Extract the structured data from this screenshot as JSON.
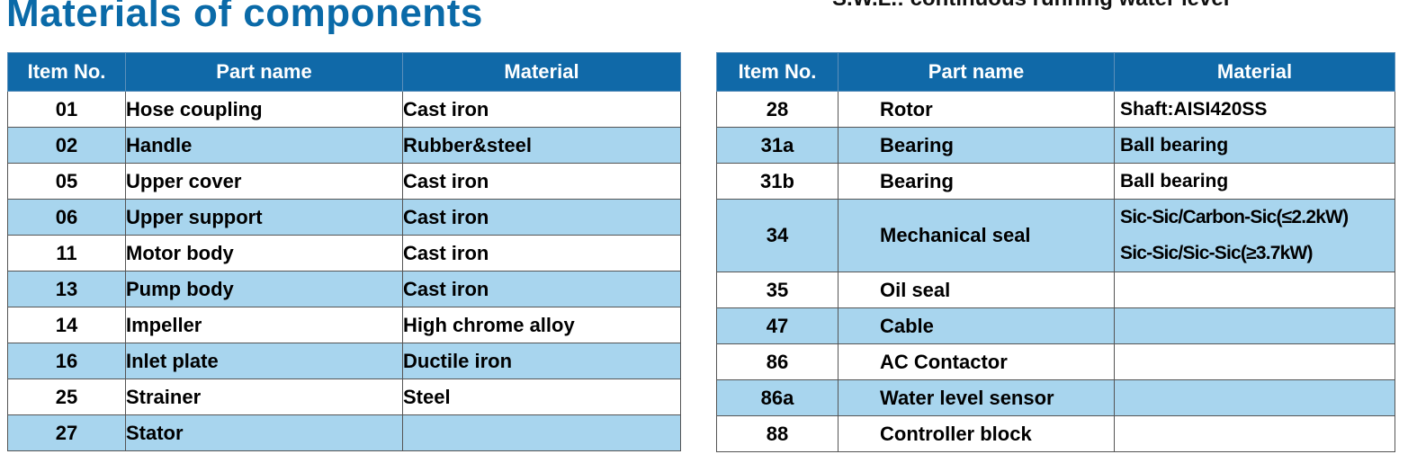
{
  "title": "Materials of components",
  "cut_note": "S.W.L.: continuous running water level",
  "columns": [
    "Item No.",
    "Part name",
    "Material"
  ],
  "left_rows": [
    {
      "item": "01",
      "part": "Hose coupling",
      "material": "Cast iron"
    },
    {
      "item": "02",
      "part": "Handle",
      "material": "Rubber&steel"
    },
    {
      "item": "05",
      "part": "Upper cover",
      "material": "Cast iron"
    },
    {
      "item": "06",
      "part": "Upper support",
      "material": "Cast iron"
    },
    {
      "item": "11",
      "part": "Motor body",
      "material": "Cast iron"
    },
    {
      "item": "13",
      "part": "Pump body",
      "material": "Cast iron"
    },
    {
      "item": "14",
      "part": "Impeller",
      "material": "High chrome alloy"
    },
    {
      "item": "16",
      "part": "Inlet plate",
      "material": "Ductile iron"
    },
    {
      "item": "25",
      "part": "Strainer",
      "material": "Steel"
    },
    {
      "item": "27",
      "part": "Stator",
      "material": ""
    }
  ],
  "right_rows": [
    {
      "item": "28",
      "part": "Rotor",
      "material": "Shaft:AISI420SS"
    },
    {
      "item": "31a",
      "part": "Bearing",
      "material": "Ball bearing"
    },
    {
      "item": "31b",
      "part": "Bearing",
      "material": "Ball bearing"
    },
    {
      "item": "34",
      "part": "Mechanical seal",
      "material": "Sic-Sic/Carbon-Sic(≤2.2kW)",
      "material2": "Sic-Sic/Sic-Sic(≥3.7kW)"
    },
    {
      "item": "35",
      "part": "Oil seal",
      "material": ""
    },
    {
      "item": "47",
      "part": "Cable",
      "material": ""
    },
    {
      "item": "86",
      "part": "AC Contactor",
      "material": ""
    },
    {
      "item": "86a",
      "part": "Water level sensor",
      "material": ""
    },
    {
      "item": "88",
      "part": "Controller block",
      "material": ""
    }
  ],
  "colors": {
    "header": "#1069a8",
    "title": "#0a6aa8",
    "stripe": "#a8d5ee"
  }
}
